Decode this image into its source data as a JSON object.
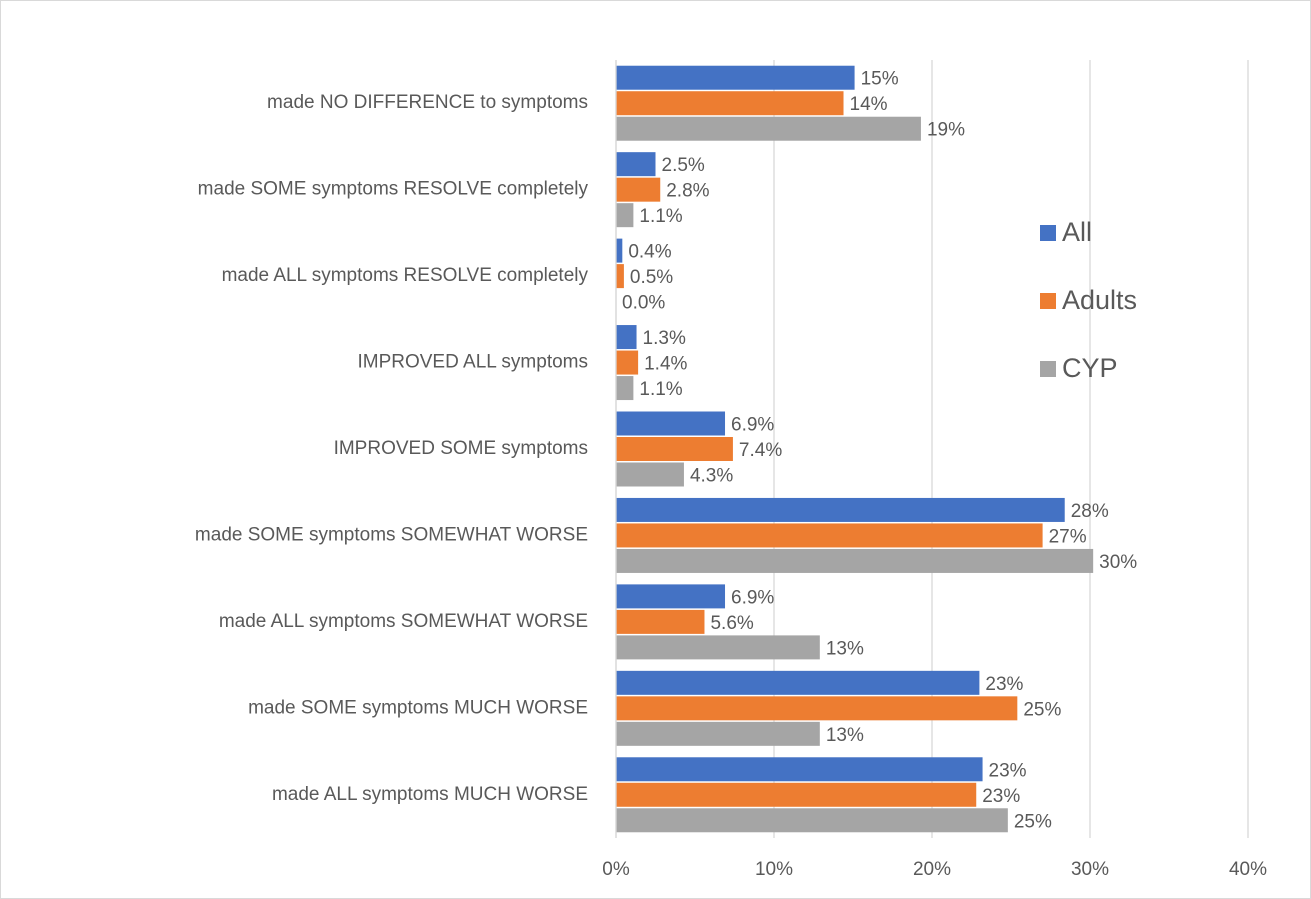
{
  "chart_data": {
    "type": "bar",
    "orientation": "horizontal",
    "categories": [
      "made NO DIFFERENCE to symptoms",
      "made SOME symptoms RESOLVE completely",
      "made ALL symptoms RESOLVE completely",
      "IMPROVED ALL symptoms",
      "IMPROVED SOME symptoms",
      "made SOME symptoms SOMEWHAT WORSE",
      "made ALL symptoms SOMEWHAT WORSE",
      "made SOME symptoms MUCH WORSE",
      "made ALL symptoms MUCH WORSE"
    ],
    "series": [
      {
        "name": "All",
        "color": "#4472c4",
        "values": [
          15.1,
          2.5,
          0.4,
          1.3,
          6.9,
          28.4,
          6.9,
          23.0,
          23.2
        ],
        "value_labels": [
          "15%",
          "2.5%",
          "0.4%",
          "1.3%",
          "6.9%",
          "28%",
          "6.9%",
          "23%",
          "23%"
        ]
      },
      {
        "name": "Adults",
        "color": "#ed7d31",
        "values": [
          14.4,
          2.8,
          0.5,
          1.4,
          7.4,
          27.0,
          5.6,
          25.4,
          22.8
        ],
        "value_labels": [
          "14%",
          "2.8%",
          "0.5%",
          "1.4%",
          "7.4%",
          "27%",
          "5.6%",
          "25%",
          "23%"
        ]
      },
      {
        "name": "CYP",
        "color": "#a5a5a5",
        "values": [
          19.3,
          1.1,
          0.0,
          1.1,
          4.3,
          30.2,
          12.9,
          12.9,
          24.8
        ],
        "value_labels": [
          "19%",
          "1.1%",
          "0.0%",
          "1.1%",
          "4.3%",
          "30%",
          "13%",
          "13%",
          "25%"
        ]
      }
    ],
    "xlim": [
      0,
      40
    ],
    "xticks": [
      {
        "value": 0,
        "label": "0%"
      },
      {
        "value": 10,
        "label": "10%"
      },
      {
        "value": 20,
        "label": "20%"
      },
      {
        "value": 30,
        "label": "30%"
      },
      {
        "value": 40,
        "label": "40%"
      }
    ],
    "grid": true,
    "legend": "right"
  }
}
